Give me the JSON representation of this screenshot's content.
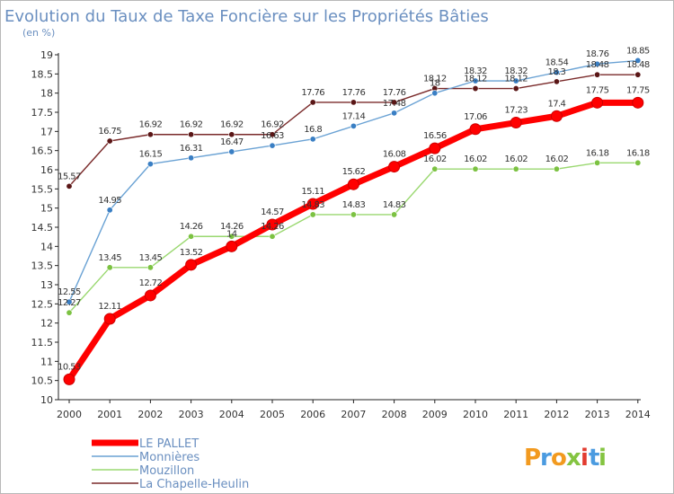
{
  "chart_data": {
    "type": "line",
    "title": "Evolution du Taux de Taxe Foncière sur les Propriétés Bâties",
    "unit_label": "(en %)",
    "xlabel": "",
    "ylabel": "",
    "categories": [
      "2000",
      "2001",
      "2002",
      "2003",
      "2004",
      "2005",
      "2006",
      "2007",
      "2008",
      "2009",
      "2010",
      "2011",
      "2012",
      "2013",
      "2014"
    ],
    "ylim": [
      10,
      19
    ],
    "yticks": [
      "10",
      "10.5",
      "11",
      "11.5",
      "12",
      "12.5",
      "13",
      "13.5",
      "14",
      "14.5",
      "15",
      "15.5",
      "16",
      "16.5",
      "17",
      "17.5",
      "18",
      "18.5",
      "19"
    ],
    "grid": false,
    "series": [
      {
        "name": "LE PALLET",
        "color": "#ff0000",
        "point_color": "#ff0000",
        "values": [
          10.53,
          12.11,
          12.72,
          13.52,
          14.0,
          14.57,
          15.11,
          15.62,
          16.08,
          16.56,
          17.06,
          17.23,
          17.4,
          17.75,
          17.75
        ],
        "labels": [
          "10.53",
          "12.11",
          "12.72",
          "13.52",
          "14",
          "14.57",
          "15.11",
          "15.62",
          "16.08",
          "16.56",
          "17.06",
          "17.23",
          "17.4",
          "17.75",
          "17.75"
        ]
      },
      {
        "name": "Monnières",
        "color": "#6aa2d4",
        "point_color": "#3a7fc4",
        "values": [
          12.55,
          14.95,
          16.15,
          16.31,
          16.47,
          16.63,
          16.8,
          17.14,
          17.48,
          18.0,
          18.32,
          18.32,
          18.54,
          18.76,
          18.85
        ],
        "labels": [
          "12.55",
          "14.95",
          "16.15",
          "16.31",
          "16.47",
          "16.63",
          "16.8",
          "17.14",
          "17.48",
          "18",
          "18.32",
          "18.32",
          "18.54",
          "18.76",
          "18.85"
        ]
      },
      {
        "name": "Mouzillon",
        "color": "#9ad870",
        "point_color": "#7cc242",
        "values": [
          12.27,
          13.45,
          13.45,
          14.26,
          14.26,
          14.26,
          14.83,
          14.83,
          14.83,
          16.02,
          16.02,
          16.02,
          16.02,
          16.18,
          16.18
        ],
        "labels": [
          "12.27",
          "13.45",
          "13.45",
          "14.26",
          "14.26",
          "14.26",
          "14.83",
          "14.83",
          "14.83",
          "16.02",
          "16.02",
          "16.02",
          "16.02",
          "16.18",
          "16.18"
        ]
      },
      {
        "name": "La Chapelle-Heulin",
        "color": "#7a2a2a",
        "point_color": "#5a1616",
        "values": [
          15.57,
          16.75,
          16.92,
          16.92,
          16.92,
          16.92,
          17.76,
          17.76,
          17.76,
          18.12,
          18.12,
          18.12,
          18.3,
          18.48,
          18.48
        ],
        "labels": [
          "15.57",
          "16.75",
          "16.92",
          "16.92",
          "16.92",
          "16.92",
          "17.76",
          "17.76",
          "17.76",
          "18.12",
          "18.12",
          "18.12",
          "18.3",
          "18.48",
          "18.48"
        ]
      }
    ],
    "legend": {
      "placement": "bottom-left"
    }
  },
  "logo": {
    "text": "Proxiti",
    "letters": [
      {
        "ch": "P",
        "color": "#f29a1f"
      },
      {
        "ch": "r",
        "color": "#4b9be0"
      },
      {
        "ch": "o",
        "color": "#f29a1f"
      },
      {
        "ch": "x",
        "color": "#84c441"
      },
      {
        "ch": "i",
        "color": "#e23b2f"
      },
      {
        "ch": "t",
        "color": "#4b9be0"
      },
      {
        "ch": "i",
        "color": "#84c441"
      }
    ]
  }
}
